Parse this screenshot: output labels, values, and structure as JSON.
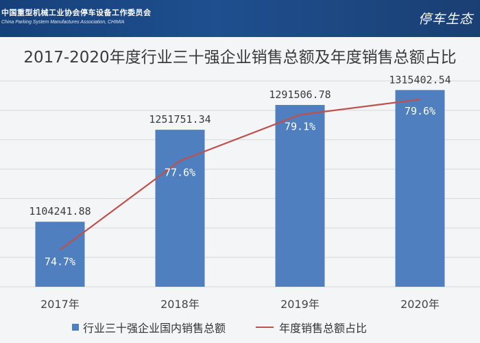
{
  "header": {
    "org_cn": "中国重型机械工业协会停车设备工作委员会",
    "org_en": "China Parking System Manufactures Association, CHIMIA",
    "logo_text": "停车生态"
  },
  "colors": {
    "bar": "#4f7fbe",
    "line": "#c0504d",
    "banner": "#1f4f8f"
  },
  "chart_data": {
    "type": "bar",
    "title": "2017-2020年度行业三十强企业销售总额及年度销售总额占比",
    "categories": [
      "2017年",
      "2018年",
      "2019年",
      "2020年"
    ],
    "series": [
      {
        "name": "行业三十强企业国内销售总额",
        "type": "bar",
        "values": [
          1104241.88,
          1251751.34,
          1291506.78,
          1315402.54
        ],
        "labels": [
          "1104241.88",
          "1251751.34",
          "1291506.78",
          "1315402.54"
        ]
      },
      {
        "name": "年度销售总额占比",
        "type": "line",
        "values": [
          74.7,
          77.6,
          79.1,
          79.6
        ],
        "labels": [
          "74.7%",
          "77.6%",
          "79.1%",
          "79.6%"
        ]
      }
    ],
    "bar_axis_range": [
      1000000,
      1330000
    ],
    "line_axis_range": [
      73.5,
      80.2
    ],
    "grid": true,
    "legend_position": "bottom"
  }
}
